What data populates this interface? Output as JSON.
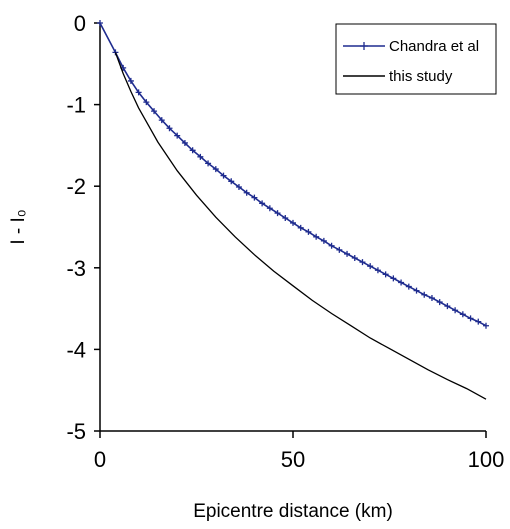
{
  "chart_data": {
    "type": "line",
    "title": "",
    "xlabel": "Epicentre distance (km)",
    "ylabel": "I - I₀",
    "xlim": [
      0,
      100
    ],
    "ylim": [
      -5,
      0
    ],
    "x_ticks": [
      0,
      50,
      100
    ],
    "y_ticks": [
      0,
      -1,
      -2,
      -3,
      -4,
      -5
    ],
    "x_tick_labels": [
      "0",
      "50",
      "100"
    ],
    "y_tick_labels": [
      "0",
      "-1",
      "-2",
      "-3",
      "-4",
      "-5"
    ],
    "grid": false,
    "legend_position": "top-right",
    "series": [
      {
        "name": "Chandra et al",
        "color": "#1f2c8f",
        "marker": "plus",
        "x": [
          0,
          4,
          6,
          8,
          10,
          12,
          14,
          16,
          18,
          20,
          22,
          24,
          26,
          28,
          30,
          32,
          34,
          36,
          38,
          40,
          42,
          44,
          46,
          48,
          50,
          52,
          54,
          56,
          58,
          60,
          62,
          64,
          66,
          68,
          70,
          72,
          74,
          76,
          78,
          80,
          82,
          84,
          86,
          88,
          90,
          92,
          94,
          96,
          98,
          100
        ],
        "y": [
          0,
          -0.36,
          -0.55,
          -0.71,
          -0.85,
          -0.97,
          -1.08,
          -1.19,
          -1.29,
          -1.38,
          -1.47,
          -1.56,
          -1.64,
          -1.72,
          -1.79,
          -1.87,
          -1.94,
          -2.01,
          -2.08,
          -2.14,
          -2.21,
          -2.27,
          -2.33,
          -2.39,
          -2.45,
          -2.51,
          -2.56,
          -2.62,
          -2.67,
          -2.73,
          -2.78,
          -2.83,
          -2.88,
          -2.93,
          -2.98,
          -3.03,
          -3.08,
          -3.13,
          -3.18,
          -3.23,
          -3.28,
          -3.33,
          -3.37,
          -3.42,
          -3.47,
          -3.52,
          -3.57,
          -3.62,
          -3.66,
          -3.71
        ]
      },
      {
        "name": "this study",
        "color": "#000000",
        "marker": "none",
        "x": [
          4,
          6,
          8,
          10,
          15,
          20,
          25,
          30,
          35,
          40,
          45,
          50,
          55,
          60,
          65,
          70,
          75,
          80,
          85,
          90,
          95,
          100
        ],
        "y": [
          -0.36,
          -0.62,
          -0.84,
          -1.04,
          -1.46,
          -1.81,
          -2.11,
          -2.38,
          -2.62,
          -2.84,
          -3.04,
          -3.22,
          -3.4,
          -3.56,
          -3.71,
          -3.86,
          -3.99,
          -4.12,
          -4.25,
          -4.37,
          -4.48,
          -4.61
        ]
      }
    ]
  }
}
